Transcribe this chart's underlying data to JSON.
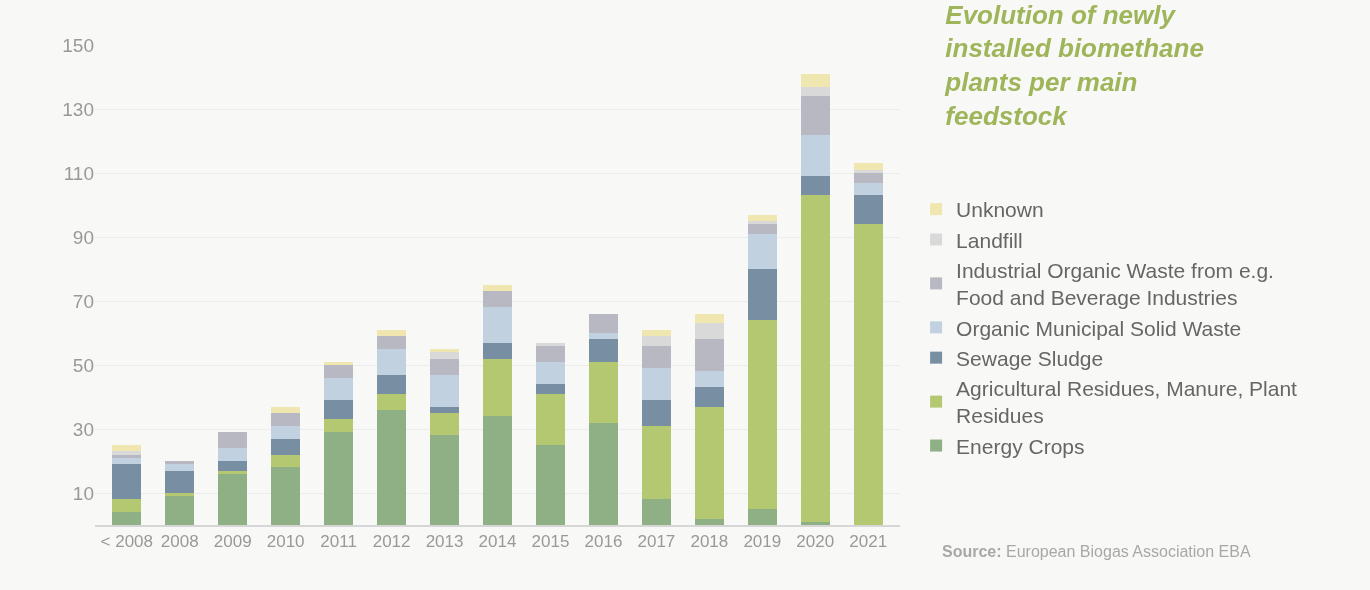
{
  "chart_data": {
    "type": "bar",
    "title": "Evolution of newly installed biomethane plants per main feedstock",
    "stacked": true,
    "categories": [
      "< 2008",
      "2008",
      "2009",
      "2010",
      "2011",
      "2012",
      "2013",
      "2014",
      "2015",
      "2016",
      "2017",
      "2018",
      "2019",
      "2020",
      "2021"
    ],
    "series": [
      {
        "name": "Energy Crops",
        "color": "#8faf84",
        "values": [
          4,
          9,
          16,
          18,
          29,
          36,
          28,
          34,
          25,
          32,
          8,
          2,
          5,
          1,
          0
        ]
      },
      {
        "name": "Agricultural Residues, Manure, Plant Residues",
        "color": "#b3c871",
        "values": [
          4,
          1,
          1,
          4,
          4,
          5,
          7,
          18,
          16,
          19,
          23,
          35,
          59,
          102,
          94
        ]
      },
      {
        "name": "Sewage Sludge",
        "color": "#778ea3",
        "values": [
          11,
          7,
          3,
          5,
          6,
          6,
          2,
          5,
          3,
          7,
          8,
          6,
          16,
          6,
          9
        ]
      },
      {
        "name": "Organic Municipal Solid Waste",
        "color": "#c2d1df",
        "values": [
          2,
          2,
          4,
          4,
          7,
          8,
          10,
          11,
          7,
          2,
          10,
          5,
          11,
          13,
          4
        ]
      },
      {
        "name": "Industrial Organic Waste from e.g. Food and Beverage Industries",
        "color": "#b8b8c2",
        "values": [
          1,
          1,
          5,
          4,
          4,
          4,
          5,
          5,
          5,
          6,
          7,
          10,
          3,
          12,
          3
        ]
      },
      {
        "name": "Landfill",
        "color": "#d9d9d9",
        "values": [
          1,
          0,
          0,
          0,
          0,
          0,
          2,
          0,
          1,
          0,
          3,
          5,
          1,
          3,
          1
        ]
      },
      {
        "name": "Unknown",
        "color": "#f0e6b0",
        "values": [
          2,
          0,
          0,
          2,
          1,
          2,
          1,
          2,
          0,
          0,
          2,
          3,
          2,
          4,
          2
        ]
      }
    ],
    "ylim": [
      0,
      150
    ],
    "yticks": [
      10,
      30,
      50,
      70,
      90,
      110,
      130,
      150
    ],
    "grid": "y",
    "legend": "right",
    "annotations": [
      "Source: European Biogas Association EBA"
    ]
  }
}
